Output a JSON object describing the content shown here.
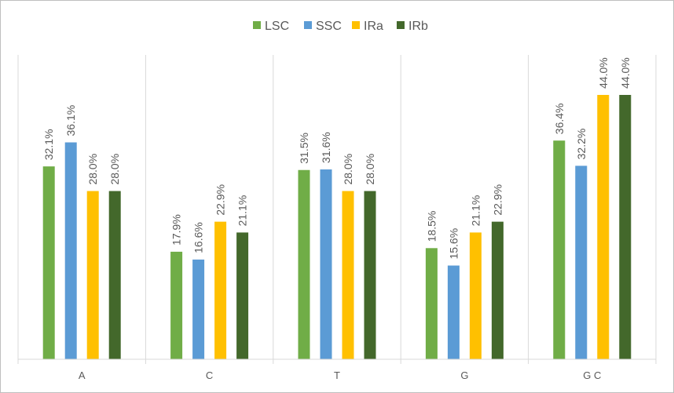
{
  "chart_data": {
    "type": "bar",
    "categories": [
      "A",
      "C",
      "T",
      "G",
      "G C"
    ],
    "series": [
      {
        "name": "LSC",
        "color": "#70ad47",
        "values": [
          32.1,
          17.9,
          31.5,
          18.5,
          36.4
        ],
        "labels": [
          "32.1%",
          "17.9%",
          "31.5%",
          "18.5%",
          "36.4%"
        ]
      },
      {
        "name": "SSC",
        "color": "#5b9bd5",
        "values": [
          36.1,
          16.6,
          31.6,
          15.6,
          32.2
        ],
        "labels": [
          "36.1%",
          "16.6%",
          "31.6%",
          "15.6%",
          "32.2%"
        ]
      },
      {
        "name": "IRa",
        "color": "#ffc000",
        "values": [
          28.0,
          22.9,
          28.0,
          21.1,
          44.0
        ],
        "labels": [
          "28.0%",
          "22.9%",
          "28.0%",
          "21.1%",
          "44.0%"
        ]
      },
      {
        "name": "IRb",
        "color": "#43682b",
        "values": [
          28.0,
          21.1,
          28.0,
          22.9,
          44.0
        ],
        "labels": [
          "28.0%",
          "21.1%",
          "28.0%",
          "22.9%",
          "44.0%"
        ]
      }
    ],
    "ylim": [
      0,
      44.0
    ],
    "legend_position": "top-center",
    "grid": "vertical-category-separators"
  }
}
